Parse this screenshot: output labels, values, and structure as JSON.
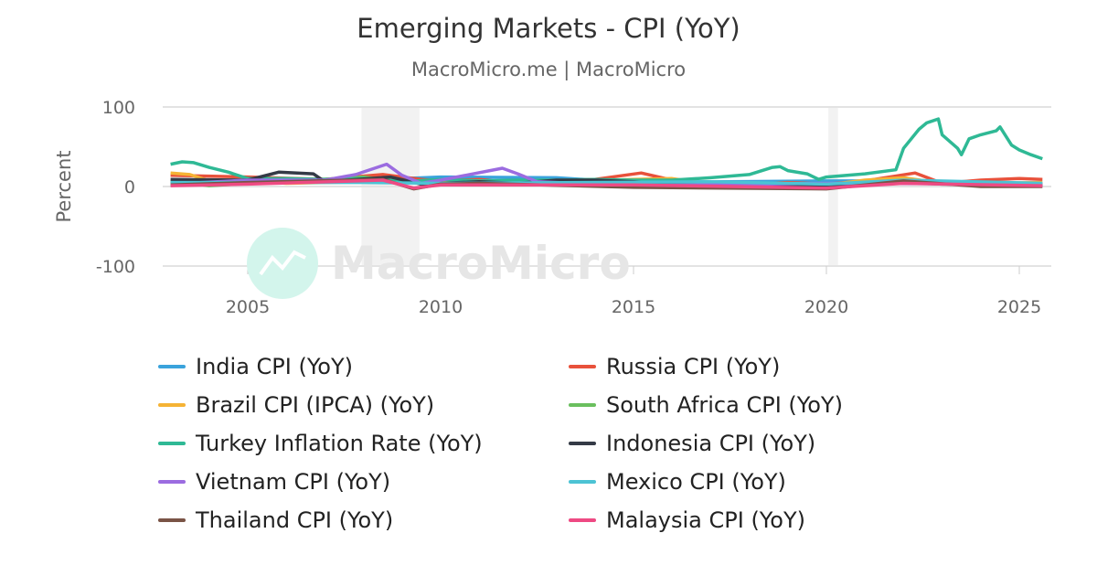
{
  "chart_data": {
    "type": "line",
    "title": "Emerging Markets - CPI (YoY)",
    "subtitle": "MacroMicro.me | MacroMicro",
    "ylabel": "Percent",
    "xlabel": "",
    "ylim": [
      -100,
      100
    ],
    "yticks": [
      "100",
      "0",
      "-100"
    ],
    "xticks": [
      "2005",
      "2010",
      "2015",
      "2020",
      "2025"
    ],
    "xlim": [
      2002.8,
      2025.8
    ],
    "grid": true,
    "legend": "bottom",
    "watermark": "MacroMicro",
    "recessions": [
      [
        2007.95,
        2009.45
      ],
      [
        2020.05,
        2020.3
      ]
    ],
    "series": [
      {
        "name": "India CPI (YoY)",
        "color": "#3aa3dc",
        "x": [
          2003,
          2008,
          2010,
          2013,
          2015,
          2020,
          2022,
          2025.6
        ],
        "y": [
          4,
          8,
          12,
          11,
          5,
          7,
          7,
          2
        ]
      },
      {
        "name": "Russia CPI (YoY)",
        "color": "#e8513b",
        "x": [
          2003,
          2005,
          2007,
          2008.5,
          2009.5,
          2010,
          2011,
          2012,
          2013,
          2014,
          2015.2,
          2016,
          2017,
          2018,
          2019,
          2020,
          2021,
          2022.3,
          2023,
          2024,
          2025,
          2025.6
        ],
        "y": [
          14,
          12,
          9,
          15,
          9,
          7,
          9,
          4,
          7,
          9,
          17,
          8,
          4,
          3,
          5,
          3,
          7,
          17,
          4,
          8,
          10,
          9
        ]
      },
      {
        "name": "Brazil CPI (IPCA) (YoY)",
        "color": "#f5b335",
        "x": [
          2003,
          2003.5,
          2004,
          2005,
          2006,
          2008,
          2010,
          2011,
          2013,
          2015,
          2016,
          2017,
          2018,
          2020,
          2021,
          2022,
          2023,
          2024,
          2025.6
        ],
        "y": [
          17,
          15,
          7,
          7,
          4,
          6,
          5,
          7,
          6,
          9,
          10,
          3,
          4,
          2,
          8,
          11,
          4,
          4,
          5
        ]
      },
      {
        "name": "South Africa CPI (YoY)",
        "color": "#6abf5e",
        "x": [
          2003,
          2004,
          2008,
          2009,
          2010,
          2015,
          2020,
          2022,
          2025.6
        ],
        "y": [
          7,
          1,
          12,
          6,
          4,
          5,
          3,
          7,
          3
        ]
      },
      {
        "name": "Turkey Inflation Rate (YoY)",
        "color": "#2fb995",
        "x": [
          2003,
          2003.3,
          2003.6,
          2004,
          2004.5,
          2005,
          2006,
          2007,
          2008,
          2009,
          2010,
          2011,
          2012,
          2013,
          2014,
          2015,
          2016,
          2017,
          2018,
          2018.6,
          2018.8,
          2019,
          2019.5,
          2019.8,
          2020,
          2021,
          2021.8,
          2022,
          2022.4,
          2022.6,
          2022.9,
          2023,
          2023.4,
          2023.5,
          2023.7,
          2024,
          2024.4,
          2024.5,
          2024.8,
          2025,
          2025.3,
          2025.6
        ],
        "y": [
          28,
          31,
          30,
          24,
          18,
          10,
          10,
          9,
          10,
          6,
          9,
          7,
          8,
          8,
          9,
          8,
          8,
          11,
          15,
          24,
          25,
          20,
          16,
          9,
          12,
          16,
          21,
          48,
          72,
          80,
          85,
          65,
          48,
          40,
          60,
          65,
          70,
          75,
          52,
          46,
          40,
          35
        ]
      },
      {
        "name": "Indonesia CPI (YoY)",
        "color": "#343a46",
        "x": [
          2003,
          2005,
          2005.8,
          2006.7,
          2007,
          2008.7,
          2009.5,
          2011,
          2012,
          2013,
          2014,
          2015,
          2016,
          2020,
          2022,
          2023,
          2025.6
        ],
        "y": [
          9,
          8,
          18,
          16,
          6,
          12,
          3,
          6,
          4,
          8,
          8,
          6,
          3,
          2,
          5,
          3,
          2
        ]
      },
      {
        "name": "Vietnam CPI (YoY)",
        "color": "#9b6ce0",
        "x": [
          2003,
          2005,
          2007,
          2007.8,
          2008.6,
          2009,
          2009.5,
          2010,
          2011.6,
          2012,
          2012.5,
          2015,
          2020,
          2025.6
        ],
        "y": [
          3,
          8,
          8,
          15,
          28,
          14,
          4,
          8,
          23,
          16,
          6,
          1,
          4,
          3
        ]
      },
      {
        "name": "Mexico CPI (YoY)",
        "color": "#4cc3d4",
        "x": [
          2003,
          2008,
          2010,
          2017,
          2020,
          2022,
          2025.6
        ],
        "y": [
          5,
          5,
          4,
          6,
          3,
          8,
          4
        ]
      },
      {
        "name": "Thailand CPI (YoY)",
        "color": "#7a5446",
        "x": [
          2003,
          2005,
          2008.5,
          2009.3,
          2010,
          2011,
          2015,
          2020,
          2022,
          2024,
          2025.6
        ],
        "y": [
          2,
          5,
          9,
          -3,
          3,
          4,
          -1,
          -3,
          7,
          0,
          0
        ]
      },
      {
        "name": "Malaysia CPI (YoY)",
        "color": "#ee4a83",
        "x": [
          2003,
          2005,
          2008.5,
          2009.3,
          2010,
          2015,
          2020,
          2022,
          2025.6
        ],
        "y": [
          1,
          3,
          8,
          -2,
          2,
          2,
          -2,
          4,
          1
        ]
      }
    ]
  }
}
